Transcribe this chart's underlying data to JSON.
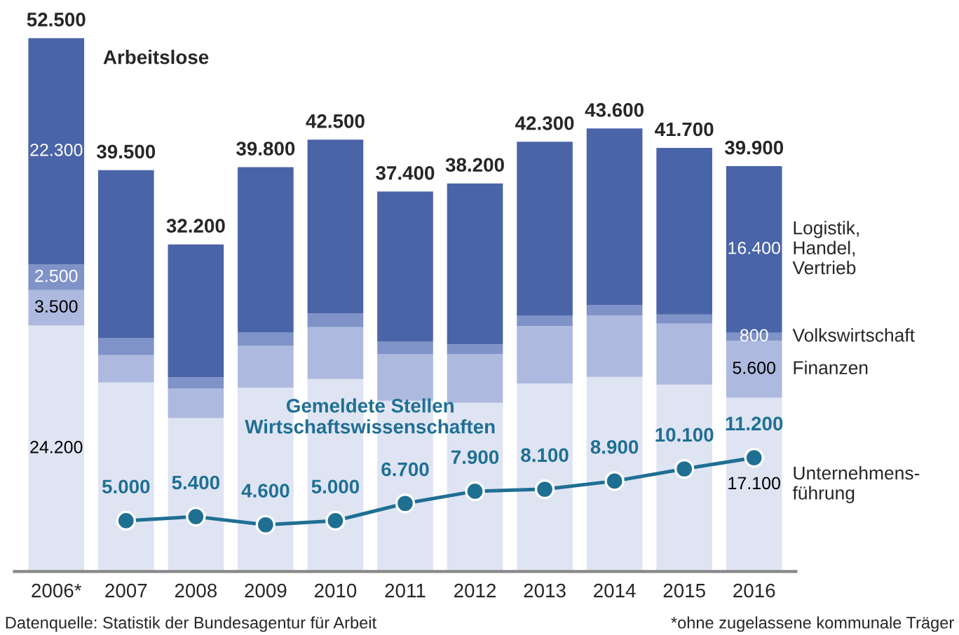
{
  "chart_data": {
    "type": "bar",
    "stacked": true,
    "legend": false,
    "grid": false,
    "categories": [
      "2006*",
      "2007",
      "2008",
      "2009",
      "2010",
      "2011",
      "2012",
      "2013",
      "2014",
      "2015",
      "2016"
    ],
    "series": [
      {
        "name": "Unternehmens-\nführung",
        "color": "#dfe4f3",
        "values": [
          24200,
          18600,
          15100,
          18100,
          18950,
          16800,
          16600,
          18500,
          19150,
          18400,
          17100
        ],
        "value_labels": [
          "24.200",
          null,
          null,
          null,
          null,
          null,
          null,
          null,
          null,
          null,
          "17.100"
        ]
      },
      {
        "name": "Finanzen",
        "color": "#aeb9df",
        "values": [
          3500,
          2700,
          2900,
          4100,
          5100,
          4600,
          4800,
          5650,
          6050,
          6000,
          5600
        ],
        "value_labels": [
          "3.500",
          null,
          null,
          null,
          null,
          null,
          null,
          null,
          null,
          null,
          "5.600"
        ]
      },
      {
        "name": "Volkswirtschaft",
        "color": "#7f93c9",
        "values": [
          2500,
          1700,
          1100,
          1350,
          1350,
          1250,
          950,
          1050,
          1000,
          900,
          800
        ],
        "value_labels": [
          "2.500",
          null,
          null,
          null,
          null,
          null,
          null,
          null,
          null,
          null,
          "800"
        ]
      },
      {
        "name": "Logistik,\nHandel,\nVertrieb",
        "color": "#4a64a8",
        "values": [
          22300,
          16500,
          13100,
          16250,
          17100,
          14750,
          15850,
          17100,
          17400,
          16400,
          16400
        ],
        "value_labels": [
          "22.300",
          null,
          null,
          null,
          null,
          null,
          null,
          null,
          null,
          null,
          "16.400"
        ]
      },
      {
        "name": "Gemeldete Stellen\nWirtschaftswissenschaften",
        "type": "line",
        "color": "#1f6f93",
        "marker": "circle",
        "line_style": "solid",
        "values": [
          null,
          5000,
          5400,
          4600,
          5000,
          6700,
          7900,
          8100,
          8900,
          10100,
          11200
        ],
        "value_labels": [
          null,
          "5.000",
          "5.400",
          "4.600",
          "5.000",
          "6.700",
          "7.900",
          "8.100",
          "8.900",
          "10.100",
          "11.200"
        ]
      }
    ],
    "totals": [
      "52.500",
      "39.500",
      "32.200",
      "39.800",
      "42.500",
      "37.400",
      "38.200",
      "42.300",
      "43.600",
      "41.700",
      "39.900"
    ],
    "annotations": [
      {
        "text": "Arbeitslose",
        "x": "2006*",
        "y": 52500
      },
      "Datenquelle: Statistik der Bundesagentur für Arbeit",
      "*ohne zugelassene kommunale Träger"
    ]
  }
}
